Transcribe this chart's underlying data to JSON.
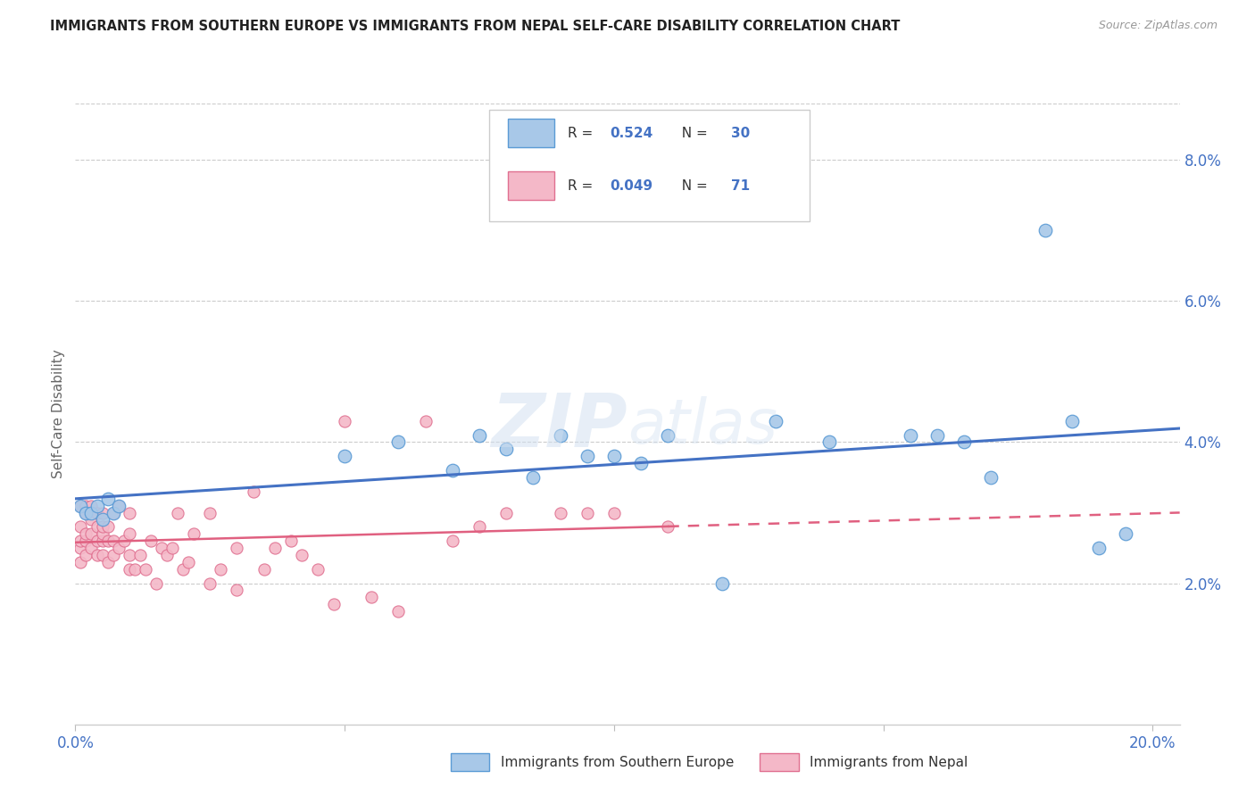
{
  "title": "IMMIGRANTS FROM SOUTHERN EUROPE VS IMMIGRANTS FROM NEPAL SELF-CARE DISABILITY CORRELATION CHART",
  "source": "Source: ZipAtlas.com",
  "ylabel": "Self-Care Disability",
  "xlim": [
    0.0,
    0.205
  ],
  "ylim": [
    0.0,
    0.088
  ],
  "xticks": [
    0.0,
    0.05,
    0.1,
    0.15,
    0.2
  ],
  "xtick_labels_show": [
    "0.0%",
    "",
    "",
    "",
    "20.0%"
  ],
  "yticks_right": [
    0.02,
    0.04,
    0.06,
    0.08
  ],
  "ytick_labels_right": [
    "2.0%",
    "4.0%",
    "6.0%",
    "8.0%"
  ],
  "blue_color": "#a8c8e8",
  "blue_edge_color": "#5b9bd5",
  "pink_color": "#f4b8c8",
  "pink_edge_color": "#e07090",
  "blue_line_color": "#4472c4",
  "pink_line_color": "#e06080",
  "watermark": "ZIPAtlas",
  "blue_scatter_x": [
    0.001,
    0.002,
    0.003,
    0.004,
    0.005,
    0.006,
    0.007,
    0.008,
    0.05,
    0.06,
    0.07,
    0.075,
    0.08,
    0.085,
    0.09,
    0.095,
    0.1,
    0.105,
    0.11,
    0.12,
    0.13,
    0.14,
    0.155,
    0.16,
    0.165,
    0.17,
    0.18,
    0.185,
    0.19,
    0.195
  ],
  "blue_scatter_y": [
    0.031,
    0.03,
    0.03,
    0.031,
    0.029,
    0.032,
    0.03,
    0.031,
    0.038,
    0.04,
    0.036,
    0.041,
    0.039,
    0.035,
    0.041,
    0.038,
    0.038,
    0.037,
    0.041,
    0.02,
    0.043,
    0.04,
    0.041,
    0.041,
    0.04,
    0.035,
    0.07,
    0.043,
    0.025,
    0.027
  ],
  "pink_scatter_x": [
    0.001,
    0.001,
    0.001,
    0.001,
    0.001,
    0.002,
    0.002,
    0.002,
    0.002,
    0.002,
    0.003,
    0.003,
    0.003,
    0.003,
    0.004,
    0.004,
    0.004,
    0.004,
    0.005,
    0.005,
    0.005,
    0.005,
    0.005,
    0.006,
    0.006,
    0.006,
    0.007,
    0.007,
    0.007,
    0.008,
    0.008,
    0.009,
    0.01,
    0.01,
    0.01,
    0.01,
    0.011,
    0.012,
    0.013,
    0.014,
    0.015,
    0.016,
    0.017,
    0.018,
    0.019,
    0.02,
    0.021,
    0.022,
    0.025,
    0.025,
    0.027,
    0.03,
    0.03,
    0.033,
    0.035,
    0.037,
    0.04,
    0.042,
    0.045,
    0.048,
    0.05,
    0.055,
    0.06,
    0.065,
    0.07,
    0.075,
    0.08,
    0.09,
    0.095,
    0.1,
    0.11
  ],
  "pink_scatter_y": [
    0.023,
    0.025,
    0.026,
    0.028,
    0.031,
    0.024,
    0.026,
    0.027,
    0.03,
    0.031,
    0.025,
    0.027,
    0.029,
    0.031,
    0.024,
    0.026,
    0.028,
    0.03,
    0.024,
    0.026,
    0.027,
    0.028,
    0.03,
    0.023,
    0.026,
    0.028,
    0.024,
    0.026,
    0.03,
    0.025,
    0.031,
    0.026,
    0.022,
    0.024,
    0.027,
    0.03,
    0.022,
    0.024,
    0.022,
    0.026,
    0.02,
    0.025,
    0.024,
    0.025,
    0.03,
    0.022,
    0.023,
    0.027,
    0.02,
    0.03,
    0.022,
    0.019,
    0.025,
    0.033,
    0.022,
    0.025,
    0.026,
    0.024,
    0.022,
    0.017,
    0.043,
    0.018,
    0.016,
    0.043,
    0.026,
    0.028,
    0.03,
    0.03,
    0.03,
    0.03,
    0.028
  ]
}
